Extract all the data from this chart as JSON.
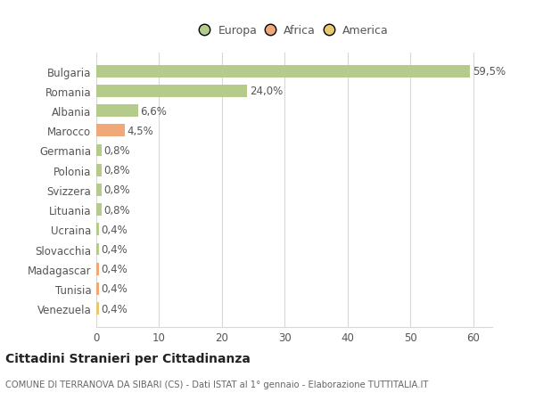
{
  "categories": [
    "Bulgaria",
    "Romania",
    "Albania",
    "Marocco",
    "Germania",
    "Polonia",
    "Svizzera",
    "Lituania",
    "Ucraina",
    "Slovacchia",
    "Madagascar",
    "Tunisia",
    "Venezuela"
  ],
  "values": [
    59.5,
    24.0,
    6.6,
    4.5,
    0.8,
    0.8,
    0.8,
    0.8,
    0.4,
    0.4,
    0.4,
    0.4,
    0.4
  ],
  "labels": [
    "59,5%",
    "24,0%",
    "6,6%",
    "4,5%",
    "0,8%",
    "0,8%",
    "0,8%",
    "0,8%",
    "0,4%",
    "0,4%",
    "0,4%",
    "0,4%",
    "0,4%"
  ],
  "colors": [
    "#b5cb8b",
    "#b5cb8b",
    "#b5cb8b",
    "#f0a878",
    "#b5cb8b",
    "#b5cb8b",
    "#b5cb8b",
    "#b5cb8b",
    "#b5cb8b",
    "#b5cb8b",
    "#f0a878",
    "#f0a878",
    "#e8c870"
  ],
  "legend_labels": [
    "Europa",
    "Africa",
    "America"
  ],
  "legend_colors": [
    "#b5cb8b",
    "#f0a878",
    "#e8c870"
  ],
  "title": "Cittadini Stranieri per Cittadinanza",
  "subtitle": "COMUNE DI TERRANOVA DA SIBARI (CS) - Dati ISTAT al 1° gennaio - Elaborazione TUTTITALIA.IT",
  "xlim": [
    0,
    63
  ],
  "background_color": "#ffffff",
  "grid_color": "#d8d8d8",
  "text_color": "#555555",
  "label_color": "#555555"
}
